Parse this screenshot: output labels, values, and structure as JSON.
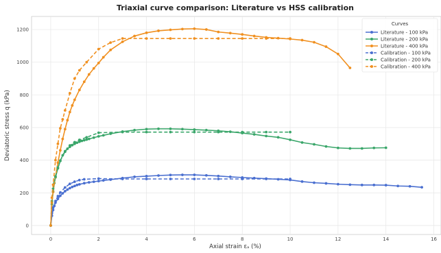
{
  "chart_data": {
    "type": "line",
    "title": "Triaxial curve comparison: Literature vs HSS calibration",
    "xlabel": "Axial strain εₐ (%)",
    "ylabel": "Deviatoric stress q (kPa)",
    "xlim": [
      -0.8,
      16.3
    ],
    "ylim": [
      -55,
      1280
    ],
    "xticks": [
      0,
      2,
      4,
      6,
      8,
      10,
      12,
      14,
      16
    ],
    "yticks": [
      0,
      200,
      400,
      600,
      800,
      1000,
      1200
    ],
    "grid": true,
    "legend": {
      "title": "Curves",
      "placement": "top-right"
    },
    "colors": {
      "100": "#4a6fd0",
      "200": "#3aa66a",
      "400": "#f09020"
    },
    "series": [
      {
        "name": "Literature - 100 kPa",
        "style": "solid",
        "color": "#4a6fd0",
        "x": [
          0,
          0.05,
          0.1,
          0.15,
          0.2,
          0.3,
          0.4,
          0.5,
          0.6,
          0.7,
          0.8,
          0.9,
          1.0,
          1.1,
          1.2,
          1.4,
          1.6,
          1.8,
          2.0,
          2.2,
          2.5,
          3.0,
          3.5,
          4.0,
          4.5,
          5.0,
          5.5,
          6.0,
          6.5,
          7.0,
          7.5,
          8.0,
          8.5,
          9.0,
          9.5,
          10.0,
          10.5,
          11.0,
          11.5,
          12.0,
          12.5,
          13.0,
          13.5,
          14.0,
          14.5,
          15.0,
          15.5
        ],
        "y": [
          0,
          60,
          95,
          120,
          140,
          163,
          182,
          197,
          210,
          220,
          229,
          236,
          242,
          248,
          252,
          259,
          264,
          268,
          272,
          276,
          281,
          290,
          298,
          302,
          306,
          309,
          310,
          310,
          307,
          303,
          298,
          294,
          290,
          287,
          283,
          279,
          269,
          262,
          258,
          253,
          250,
          248,
          248,
          247,
          242,
          240,
          234
        ]
      },
      {
        "name": "Literature - 200 kPa",
        "style": "solid",
        "color": "#3aa66a",
        "x": [
          0,
          0.05,
          0.1,
          0.15,
          0.2,
          0.3,
          0.4,
          0.5,
          0.6,
          0.7,
          0.8,
          0.9,
          1.0,
          1.1,
          1.2,
          1.3,
          1.4,
          1.5,
          1.6,
          1.8,
          2.0,
          2.2,
          2.5,
          3.0,
          3.5,
          4.0,
          4.5,
          5.0,
          5.5,
          6.0,
          6.5,
          7.0,
          7.5,
          8.0,
          8.5,
          9.0,
          9.5,
          10.0,
          10.5,
          11.0,
          11.5,
          12.0,
          12.5,
          13.0,
          13.5,
          14.0
        ],
        "y": [
          0,
          130,
          210,
          260,
          295,
          350,
          395,
          430,
          455,
          470,
          482,
          492,
          500,
          507,
          513,
          518,
          522,
          526,
          530,
          538,
          546,
          552,
          562,
          575,
          584,
          590,
          592,
          592,
          590,
          587,
          584,
          580,
          574,
          566,
          558,
          548,
          540,
          525,
          508,
          497,
          484,
          475,
          472,
          472,
          475,
          476
        ]
      },
      {
        "name": "Literature - 400 kPa",
        "style": "solid",
        "color": "#f09020",
        "x": [
          0,
          0.05,
          0.1,
          0.2,
          0.3,
          0.4,
          0.5,
          0.6,
          0.7,
          0.8,
          0.9,
          1.0,
          1.2,
          1.4,
          1.6,
          1.8,
          2.0,
          2.2,
          2.5,
          3.0,
          3.5,
          4.0,
          4.5,
          5.0,
          5.5,
          6.0,
          6.5,
          7.0,
          7.5,
          8.0,
          8.5,
          9.0,
          9.5,
          10.0,
          10.5,
          11.0,
          11.5,
          12.0,
          12.5
        ],
        "y": [
          0,
          140,
          205,
          300,
          385,
          460,
          530,
          590,
          645,
          695,
          735,
          770,
          830,
          880,
          925,
          962,
          995,
          1030,
          1075,
          1125,
          1160,
          1180,
          1192,
          1198,
          1203,
          1205,
          1200,
          1185,
          1178,
          1170,
          1160,
          1152,
          1147,
          1142,
          1135,
          1122,
          1095,
          1050,
          965
        ]
      },
      {
        "name": "Calibration - 100 kPa",
        "style": "dashed",
        "color": "#4a6fd0",
        "x": [
          0,
          0.05,
          0.1,
          0.2,
          0.3,
          0.4,
          0.6,
          0.8,
          1.0,
          1.2,
          1.4,
          2.0,
          3.0,
          4.0,
          5.0,
          6.0,
          7.0,
          8.0,
          9.0,
          10.0
        ],
        "y": [
          0,
          75,
          110,
          150,
          180,
          202,
          233,
          255,
          268,
          278,
          283,
          287,
          285,
          285,
          285,
          285,
          285,
          285,
          285,
          285
        ]
      },
      {
        "name": "Calibration - 200 kPa",
        "style": "dashed",
        "color": "#3aa66a",
        "x": [
          0,
          0.05,
          0.1,
          0.2,
          0.3,
          0.4,
          0.6,
          0.8,
          1.0,
          1.2,
          1.5,
          2.0,
          3.0,
          4.0,
          5.0,
          6.0,
          7.0,
          8.0,
          9.0,
          10.0
        ],
        "y": [
          0,
          150,
          225,
          300,
          355,
          398,
          452,
          490,
          510,
          524,
          540,
          568,
          572,
          572,
          572,
          572,
          572,
          572,
          572,
          572
        ]
      },
      {
        "name": "Calibration - 400 kPa",
        "style": "dashed",
        "color": "#f09020",
        "x": [
          0,
          0.05,
          0.1,
          0.2,
          0.3,
          0.4,
          0.5,
          0.6,
          0.8,
          1.0,
          1.2,
          1.5,
          2.0,
          2.5,
          3.0,
          4.0,
          5.0,
          6.0,
          7.0,
          8.0,
          9.0,
          10.0
        ],
        "y": [
          0,
          170,
          250,
          400,
          500,
          595,
          650,
          705,
          810,
          900,
          950,
          1000,
          1080,
          1120,
          1145,
          1145,
          1145,
          1145,
          1145,
          1145,
          1145,
          1145
        ]
      }
    ]
  }
}
